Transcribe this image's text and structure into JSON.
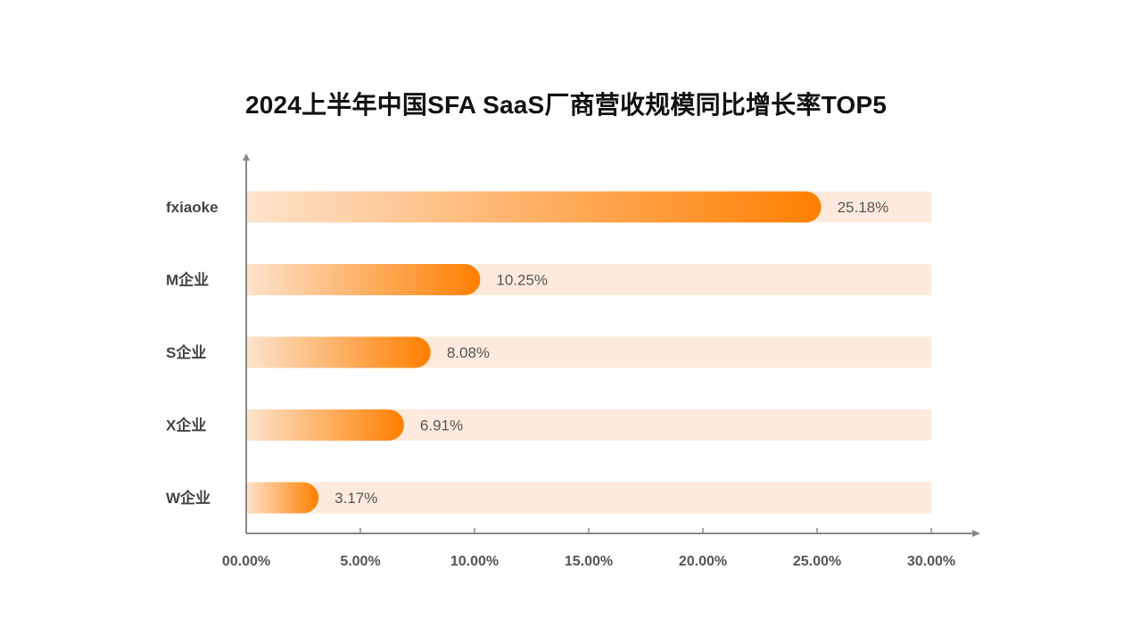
{
  "chart_data": {
    "type": "bar",
    "orientation": "horizontal",
    "title": "2024上半年中国SFA SaaS厂商营收规模同比增长率TOP5",
    "categories": [
      "fxiaoke",
      "M企业",
      "S企业",
      "X企业",
      "W企业"
    ],
    "values": [
      25.18,
      10.25,
      8.08,
      6.91,
      3.17
    ],
    "value_labels": [
      "25.18%",
      "10.25%",
      "8.08%",
      "6.91%",
      "3.17%"
    ],
    "xlim": [
      0,
      30
    ],
    "x_ticks": [
      0,
      5,
      10,
      15,
      20,
      25,
      30
    ],
    "x_tick_labels": [
      "00.00%",
      "5.00%",
      "10.00%",
      "15.00%",
      "20.00%",
      "25.00%",
      "30.00%"
    ],
    "xlabel": "",
    "ylabel": "",
    "grid": false,
    "legend": "none",
    "colors": {
      "bar_start": "#fde3cc",
      "bar_end": "#ff7f00",
      "track": "#fdeadc",
      "axis": "#888888"
    }
  }
}
